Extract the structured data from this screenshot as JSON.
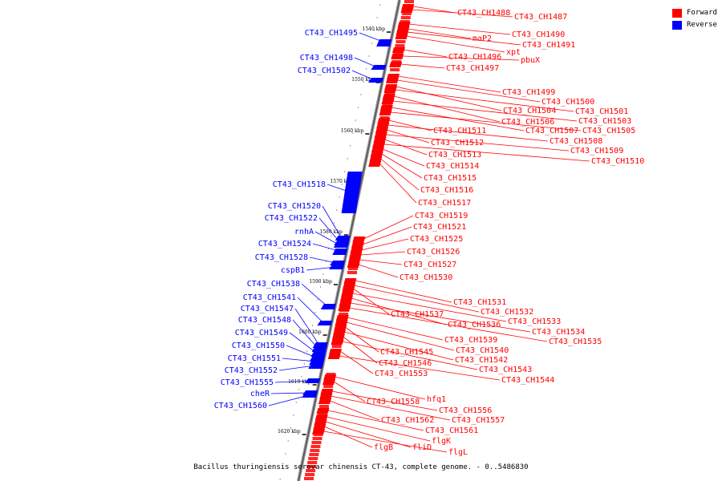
{
  "genome_title": "Bacillus thuringiensis serovar chinensis CT-43, complete genome. - 0..5486830",
  "legend": {
    "forward_label": "Forward",
    "reverse_label": "Reverse",
    "forward_color": "#ff0000",
    "reverse_color": "#0000ff"
  },
  "ticks": [
    "1540 kbp",
    "1550 kbp",
    "1560 kbp",
    "1570 kbp",
    "1580 kbp",
    "1590 kbp",
    "1600 kbp",
    "1610 kbp",
    "1620 kbp"
  ],
  "reverse_genes": [
    "CT43_CH1495",
    "CT43_CH1498",
    "CT43_CH1502",
    "CT43_CH1518",
    "CT43_CH1520",
    "CT43_CH1522",
    "rnhA",
    "CT43_CH1524",
    "CT43_CH1528",
    "cspB1",
    "CT43_CH1538",
    "CT43_CH1541",
    "CT43_CH1547",
    "CT43_CH1548",
    "CT43_CH1549",
    "CT43_CH1550",
    "CT43_CH1551",
    "CT43_CH1552",
    "CT43_CH1555",
    "cheR",
    "CT43_CH1560"
  ],
  "forward_genes": [
    "CT43_CH1488",
    "CT43_CH1487",
    "CT43_CH1490",
    "maP2",
    "CT43_CH1491",
    "xpt",
    "CT43_CH1496",
    "pbuX",
    "CT43_CH1497",
    "CT43_CH1499",
    "CT43_CH1500",
    "CT43_CH1504",
    "CT43_CH1501",
    "CT43_CH1506",
    "CT43_CH1503",
    "CT43_CH1507",
    "CT43_CH1505",
    "CT43_CH1511",
    "CT43_CH1508",
    "CT43_CH1512",
    "CT43_CH1509",
    "CT43_CH1513",
    "CT43_CH1510",
    "CT43_CH1514",
    "CT43_CH1515",
    "CT43_CH1516",
    "CT43_CH1517",
    "CT43_CH1519",
    "CT43_CH1521",
    "CT43_CH1525",
    "CT43_CH1526",
    "CT43_CH1527",
    "CT43_CH1530",
    "CT43_CH1531",
    "CT43_CH1532",
    "CT43_CH1537",
    "CT43_CH1533",
    "CT43_CH1536",
    "CT43_CH1534",
    "CT43_CH1535",
    "CT43_CH1539",
    "CT43_CH1540",
    "CT43_CH1545",
    "CT43_CH1542",
    "CT43_CH1546",
    "CT43_CH1543",
    "CT43_CH1553",
    "CT43_CH1544",
    "hfq1",
    "CT43_CH1558",
    "CT43_CH1556",
    "CT43_CH1557",
    "CT43_CH1562",
    "CT43_CH1561",
    "flgK",
    "fliD",
    "flgB",
    "flgL"
  ]
}
